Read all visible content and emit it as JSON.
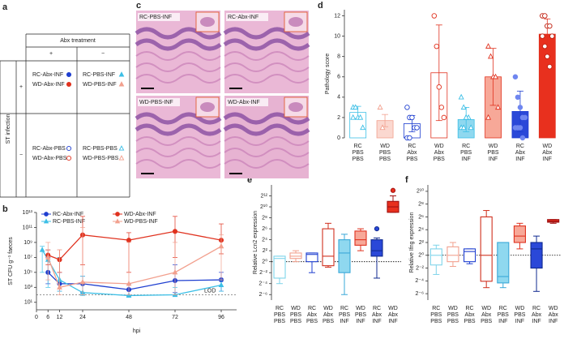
{
  "panel_labels": [
    "a",
    "b",
    "c",
    "d",
    "e",
    "f"
  ],
  "table": {
    "column_header": "Abx treatment",
    "columns": [
      "+",
      "−"
    ],
    "row_header": "ST infection",
    "rows": [
      "+",
      "−"
    ],
    "cells": [
      [
        [
          {
            "label": "RC-Abx-INF",
            "color": "#1f3fd0",
            "marker": "circle"
          },
          {
            "label": "WD-Abx-INF",
            "color": "#e0321f",
            "marker": "circle"
          }
        ],
        [
          {
            "label": "RC-PBS-INF",
            "color": "#3cbfe6",
            "marker": "triangle"
          },
          {
            "label": "WD-PBS-INF",
            "color": "#f2a08e",
            "marker": "triangle"
          }
        ]
      ],
      [
        [
          {
            "label": "RC-Abx-PBS",
            "color": "#1f3fd0",
            "marker": "circle-open"
          },
          {
            "label": "WD-Abx-PBS",
            "color": "#e0321f",
            "marker": "circle-open"
          }
        ],
        [
          {
            "label": "RC-PBS-PBS",
            "color": "#3cbfe6",
            "marker": "triangle-open"
          },
          {
            "label": "WD-PBS-PBS",
            "color": "#f2a08e",
            "marker": "triangle-open"
          }
        ]
      ]
    ]
  },
  "images": [
    {
      "label": "RC-PBS-INF"
    },
    {
      "label": "RC-Abx-INF"
    },
    {
      "label": "WD-PBS-INF"
    },
    {
      "label": "WD-Abx-INF"
    }
  ],
  "chart_data": [
    {
      "type": "line",
      "log_y": true,
      "ylabel": "ST CFU g⁻¹ faeces",
      "xlabel": "hpi",
      "x": [
        3,
        6,
        12,
        24,
        48,
        72,
        96
      ],
      "xlim": [
        0,
        104
      ],
      "xticks": [
        0,
        6,
        12,
        24,
        48,
        72,
        96
      ],
      "ylim": [
        1,
        10000000000000.0
      ],
      "yticks": [
        {
          "value": 10,
          "label": "10¹"
        },
        {
          "value": 1000,
          "label": "10³"
        },
        {
          "value": 100000,
          "label": "10⁵"
        },
        {
          "value": 10000000,
          "label": "10⁷"
        },
        {
          "value": 1000000000,
          "label": "10⁹"
        },
        {
          "value": 100000000000,
          "label": "10¹¹"
        },
        {
          "value": 10000000000000,
          "label": "10¹³"
        }
      ],
      "lod": {
        "text": "LOD",
        "value": 100
      },
      "legend": "top",
      "series": [
        {
          "name": "RC-Abx-INF",
          "color": "#1f3fd0",
          "marker": "circle",
          "values": [
            null,
            100000,
            3000,
            3000,
            500,
            8000,
            10000
          ],
          "lower": [
            null,
            3000,
            300,
            200,
            80,
            200,
            300
          ],
          "upper": [
            null,
            10000000,
            100000,
            30000,
            3000,
            1000000,
            100000
          ]
        },
        {
          "name": "RC-PBS-INF",
          "color": "#3cbfe6",
          "marker": "triangle",
          "values": [
            100000000,
            5000000,
            10000,
            200,
            80,
            100,
            2000
          ],
          "lower": [
            100000,
            1000,
            300,
            80,
            60,
            80,
            300
          ],
          "upper": [
            300000000,
            100000000,
            10000000,
            30000,
            100,
            1000,
            10000
          ]
        },
        {
          "name": "WD-Abx-INF",
          "color": "#e0321f",
          "marker": "circle",
          "values": [
            null,
            20000000,
            5000000,
            10000000000,
            2000000000,
            30000000000,
            2000000000
          ],
          "lower": [
            null,
            1000000,
            100000,
            1000000,
            100000,
            10000000,
            30000000
          ],
          "upper": [
            null,
            100000000,
            100000000,
            3000000000000,
            20000000000,
            3000000000000,
            300000000000
          ]
        },
        {
          "name": "WD-PBS-INF",
          "color": "#f2a08e",
          "marker": "triangle",
          "values": [
            null,
            10000000,
            1000,
            5000,
            3000,
            100000,
            300000000
          ],
          "lower": [
            null,
            10000,
            100,
            100,
            100,
            100,
            10000
          ],
          "upper": [
            null,
            1000000000,
            100000000,
            100000000000,
            1000000000,
            1000000000,
            10000000000
          ]
        }
      ]
    },
    {
      "type": "bar",
      "ylabel": "Pathology score",
      "categories": [
        [
          "RC",
          "PBS",
          "PBS"
        ],
        [
          "WD",
          "PBS",
          "PBS"
        ],
        [
          "RC",
          "Abx",
          "PBS"
        ],
        [
          "WD",
          "Abx",
          "PBS"
        ],
        [
          "RC",
          "PBS",
          "INF"
        ],
        [
          "WD",
          "PBS",
          "INF"
        ],
        [
          "RC",
          "Abx",
          "INF"
        ],
        [
          "WD",
          "Abx",
          "INF"
        ]
      ],
      "values": [
        2.5,
        1.7,
        1.4,
        6.4,
        1.8,
        6,
        2.6,
        10.2
      ],
      "errors": [
        0.6,
        0.6,
        0.8,
        4.7,
        1.2,
        2.8,
        2,
        1.5
      ],
      "points": [
        [
          3,
          3,
          2,
          2,
          1,
          2
        ],
        [
          3,
          1
        ],
        [
          3,
          2,
          2,
          1,
          1,
          0,
          0
        ],
        [
          12,
          9,
          5,
          3,
          2
        ],
        [
          4,
          3,
          2,
          2,
          1,
          1,
          1,
          2
        ],
        [
          9,
          8,
          6,
          6,
          3,
          2
        ],
        [
          6,
          4,
          3,
          2,
          2,
          1,
          1,
          1,
          0
        ],
        [
          12,
          12,
          11,
          11,
          10,
          10,
          9,
          8,
          7
        ]
      ],
      "point_markers": [
        "triangle-open",
        "triangle-open",
        "circle-open",
        "circle-open",
        "triangle-open",
        "triangle-open",
        "circle",
        "circle-open"
      ],
      "fills": [
        "#ffffff",
        "#fbd8d0",
        "#ffffff",
        "#ffffff",
        "#8fd8ef",
        "#f7a898",
        "#2a48d8",
        "#e8301e"
      ],
      "strokes": [
        "#3cbfe6",
        "#f2a08e",
        "#1f3fd0",
        "#e0321f",
        "#3cbfe6",
        "#e0321f",
        "#1f3fd0",
        "#e0321f"
      ],
      "ylim": [
        0,
        12.6
      ],
      "yticks": [
        0,
        2,
        4,
        6,
        8,
        10,
        12
      ]
    },
    {
      "type": "box",
      "log_y": true,
      "ylabel": "Relative Lcn2 expression",
      "reference": 1,
      "categories": [
        [
          "RC",
          "PBS",
          "PBS"
        ],
        [
          "WD",
          "PBS",
          "PBS"
        ],
        [
          "RC",
          "Abx",
          "PBS"
        ],
        [
          "WD",
          "Abx",
          "PBS"
        ],
        [
          "RC",
          "PBS",
          "INF"
        ],
        [
          "WD",
          "PBS",
          "INF"
        ],
        [
          "RC",
          "Abx",
          "INF"
        ],
        [
          "WD",
          "Abx",
          "INF"
        ]
      ],
      "boxes": [
        {
          "min": 0.0625,
          "q1": 0.125,
          "median": 1.5,
          "q3": 2,
          "max": 2
        },
        {
          "min": 1,
          "q1": 1.5,
          "median": 2,
          "q3": 3,
          "max": 4
        },
        {
          "min": 0.25,
          "q1": 1,
          "median": 2.5,
          "q3": 3,
          "max": 3
        },
        {
          "min": 0.5,
          "q1": 0.6,
          "median": 2,
          "q3": 64,
          "max": 128
        },
        {
          "min": 0.015625,
          "q1": 0.25,
          "median": 3,
          "q3": 16,
          "max": 32
        },
        {
          "min": 4,
          "q1": 8,
          "median": 16,
          "q3": 48,
          "max": 64
        },
        {
          "min": 0.125,
          "q1": 2,
          "median": 4,
          "q3": 16,
          "max": 20,
          "outliers": [
            64
          ]
        },
        {
          "min": 512,
          "q1": 512,
          "median": 1024,
          "q3": 2048,
          "max": 4096,
          "outliers": [
            8192
          ]
        }
      ],
      "fills": [
        "#ffffff",
        "#ffffff",
        "#ffffff",
        "#ffffff",
        "#8fd8ef",
        "#f7a898",
        "#2a48d8",
        "#e8301e"
      ],
      "strokes": [
        "#7fd4ea",
        "#f2a08e",
        "#1f3fd0",
        "#d0301e",
        "#3aa8d8",
        "#e0321f",
        "#102a90",
        "#a01010"
      ],
      "ylim": [
        0.0078125,
        16384
      ],
      "yticks": [
        {
          "value": 0.015625,
          "label": "2⁻⁶"
        },
        {
          "value": 0.0625,
          "label": "2⁻⁴"
        },
        {
          "value": 0.25,
          "label": "2⁻²"
        },
        {
          "value": 1,
          "label": "2⁰"
        },
        {
          "value": 4,
          "label": "2²"
        },
        {
          "value": 16,
          "label": "2⁴"
        },
        {
          "value": 64,
          "label": "2⁶"
        },
        {
          "value": 256,
          "label": "2⁸"
        },
        {
          "value": 1024,
          "label": "2¹⁰"
        },
        {
          "value": 4096,
          "label": "2¹²"
        }
      ]
    },
    {
      "type": "box",
      "log_y": true,
      "ylabel": "Relative Ifng expression",
      "reference": 1,
      "categories": [
        [
          "RC",
          "PBS",
          "PBS"
        ],
        [
          "WD",
          "PBS",
          "PBS"
        ],
        [
          "RC",
          "Abx",
          "PBS"
        ],
        [
          "WD",
          "Abx",
          "PBS"
        ],
        [
          "RC",
          "PBS",
          "INF"
        ],
        [
          "WD",
          "PBS",
          "INF"
        ],
        [
          "RC",
          "Abx",
          "INF"
        ],
        [
          "WD",
          "Abx",
          "INF"
        ]
      ],
      "boxes": [
        {
          "min": 0.125,
          "q1": 0.35,
          "median": 1,
          "q3": 2,
          "max": 3
        },
        {
          "min": 0.3,
          "q1": 0.5,
          "median": 1,
          "q3": 2.5,
          "max": 4
        },
        {
          "min": 0.4,
          "q1": 0.5,
          "median": 1.5,
          "q3": 2,
          "max": 2
        },
        {
          "min": 0.03,
          "q1": 0.06,
          "median": 1,
          "q3": 64,
          "max": 128
        },
        {
          "min": 0.03,
          "q1": 0.05,
          "median": 0.1,
          "q3": 4,
          "max": 4
        },
        {
          "min": 2,
          "q1": 4,
          "median": 8,
          "q3": 24,
          "max": 32
        },
        {
          "min": 0.02,
          "q1": 0.25,
          "median": 2,
          "q3": 4,
          "max": 8
        },
        {
          "min": 32,
          "q1": 36,
          "median": 40,
          "q3": 48,
          "max": 48
        }
      ],
      "fills": [
        "#ffffff",
        "#ffffff",
        "#ffffff",
        "#ffffff",
        "#8fd8ef",
        "#f7a898",
        "#2a48d8",
        "#e8301e"
      ],
      "strokes": [
        "#7fd4ea",
        "#f2a08e",
        "#1f3fd0",
        "#d0301e",
        "#3aa8d8",
        "#e0321f",
        "#102a90",
        "#a01010"
      ],
      "ylim": [
        0.0078125,
        2048
      ],
      "yticks": [
        {
          "value": 0.015625,
          "label": "2⁻⁶"
        },
        {
          "value": 0.0625,
          "label": "2⁻⁴"
        },
        {
          "value": 0.25,
          "label": "2⁻²"
        },
        {
          "value": 1,
          "label": "2⁰"
        },
        {
          "value": 4,
          "label": "2²"
        },
        {
          "value": 16,
          "label": "2⁴"
        },
        {
          "value": 64,
          "label": "2⁶"
        },
        {
          "value": 256,
          "label": "2⁸"
        },
        {
          "value": 1024,
          "label": "2¹⁰"
        }
      ]
    }
  ]
}
